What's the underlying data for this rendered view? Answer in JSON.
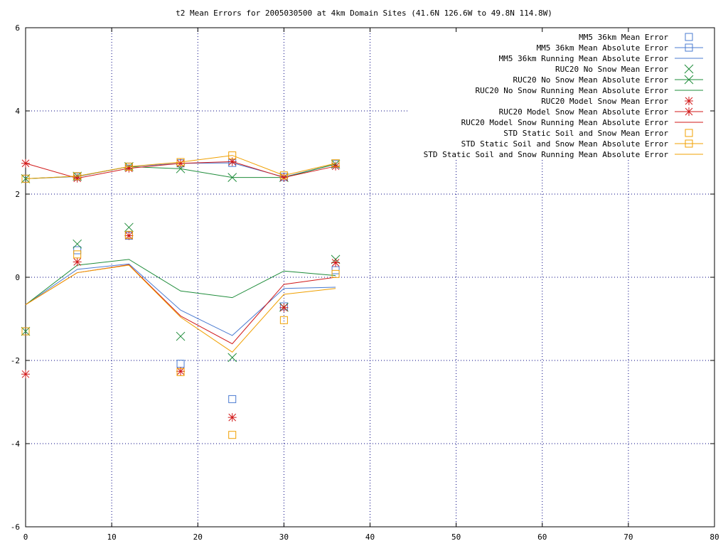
{
  "chart_data": {
    "type": "line",
    "title": "t2 Mean Errors for 2005030500 at 4km Domain Sites (41.6N 126.6W to 49.8N 114.8W)",
    "xlabel": "",
    "ylabel": "",
    "xlim": [
      0,
      80
    ],
    "ylim": [
      -6,
      6
    ],
    "x_ticks": [
      0,
      10,
      20,
      30,
      40,
      50,
      60,
      70,
      80
    ],
    "y_ticks": [
      -6,
      -4,
      -2,
      0,
      2,
      4,
      6
    ],
    "x_tick_labels": [
      "0",
      "10",
      "20",
      "30",
      "40",
      "50",
      "60",
      "70",
      "80"
    ],
    "y_tick_labels": [
      "-6",
      "-4",
      "-2",
      "0",
      "2",
      "4",
      "6"
    ],
    "grid": true,
    "legend_position": "top-right",
    "x": [
      0,
      6,
      12,
      18,
      24,
      30,
      36
    ],
    "series": [
      {
        "name": "MM5 36km Mean Error",
        "style": "points",
        "marker": "square",
        "color": "#4a7bd1",
        "values": [
          -1.3,
          0.65,
          1.0,
          -2.08,
          -2.93,
          -0.7,
          0.17
        ]
      },
      {
        "name": "MM5 36km Mean Absolute Error",
        "style": "linespoints",
        "marker": "square",
        "color": "#4a7bd1",
        "values": [
          2.37,
          2.42,
          2.66,
          2.74,
          2.75,
          2.41,
          2.72
        ]
      },
      {
        "name": "MM5 36km Running Mean Absolute Error",
        "style": "line",
        "marker": "none",
        "color": "#4a7bd1",
        "values": [
          -0.66,
          0.19,
          0.32,
          -0.79,
          -1.4,
          -0.27,
          -0.24
        ]
      },
      {
        "name": "RUC20 No Snow Mean Error",
        "style": "points",
        "marker": "x",
        "color": "#1e8c3a",
        "values": [
          -1.3,
          0.8,
          1.2,
          -1.42,
          -1.93,
          -0.72,
          0.43
        ]
      },
      {
        "name": "RUC20 No Snow Mean Absolute Error",
        "style": "linespoints",
        "marker": "x",
        "color": "#1e8c3a",
        "values": [
          2.37,
          2.43,
          2.66,
          2.61,
          2.4,
          2.4,
          2.72
        ]
      },
      {
        "name": "RUC20 No Snow Running Mean Absolute Error",
        "style": "line",
        "marker": "none",
        "color": "#1e8c3a",
        "values": [
          -0.66,
          0.29,
          0.43,
          -0.33,
          -0.49,
          0.15,
          0.04
        ]
      },
      {
        "name": "RUC20 Model Snow Mean Error",
        "style": "points",
        "marker": "star",
        "color": "#d11a1a",
        "values": [
          -2.33,
          0.37,
          1.0,
          -2.26,
          -3.37,
          -0.73,
          0.35
        ]
      },
      {
        "name": "RUC20 Model Snow Mean Absolute Error",
        "style": "linespoints",
        "marker": "star",
        "color": "#d11a1a",
        "values": [
          2.74,
          2.38,
          2.62,
          2.74,
          2.78,
          2.4,
          2.67
        ]
      },
      {
        "name": "RUC20 Model Snow Running Mean Absolute Error",
        "style": "line",
        "marker": "none",
        "color": "#d11a1a",
        "values": [
          -0.66,
          0.11,
          0.3,
          -0.93,
          -1.6,
          -0.17,
          0.0
        ]
      },
      {
        "name": "STD Static Soil and Snow Mean Error",
        "style": "points",
        "marker": "square",
        "color": "#f0a000",
        "values": [
          -1.3,
          0.55,
          1.02,
          -2.28,
          -3.79,
          -1.03,
          0.08
        ]
      },
      {
        "name": "STD Static Soil and Snow Mean Absolute Error",
        "style": "linespoints",
        "marker": "square",
        "color": "#f0a000",
        "values": [
          2.37,
          2.43,
          2.66,
          2.77,
          2.93,
          2.45,
          2.74
        ]
      },
      {
        "name": "STD Static Soil and Snow Running Mean Absolute Error",
        "style": "line",
        "marker": "none",
        "color": "#f0a000",
        "values": [
          -0.66,
          0.11,
          0.29,
          -0.96,
          -1.8,
          -0.41,
          -0.27
        ]
      }
    ]
  }
}
